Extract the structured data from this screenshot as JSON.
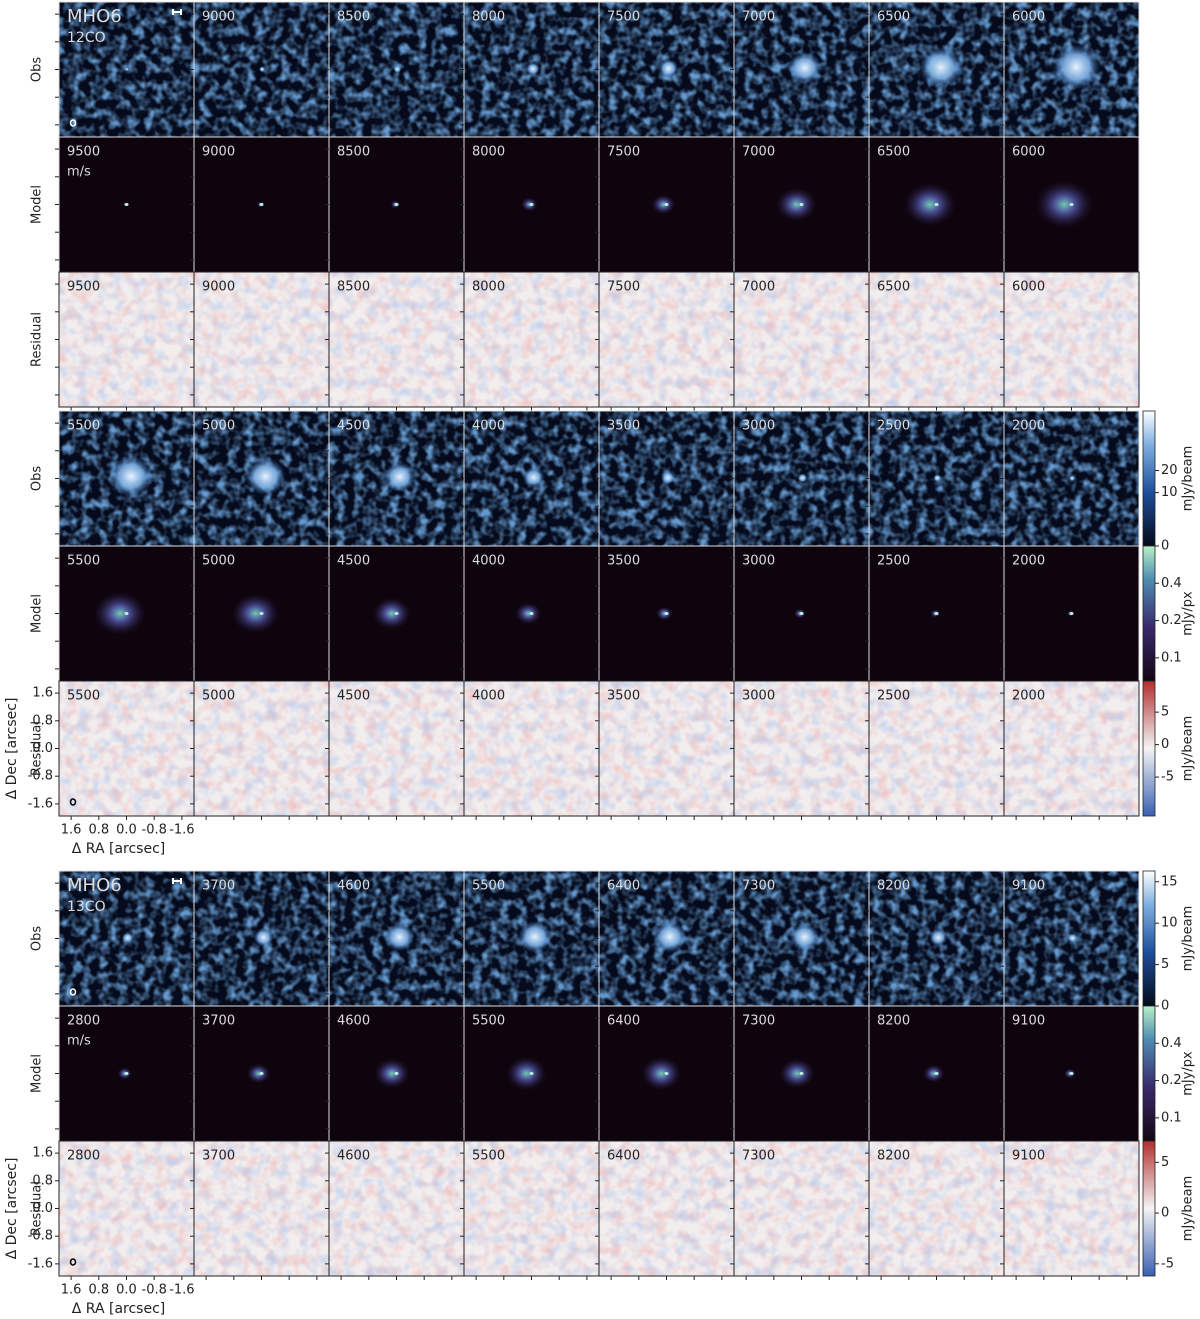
{
  "figures": [
    {
      "title": "MHO6",
      "line": "12CO",
      "unit": "m/s",
      "row_labels": [
        "Obs",
        "Model",
        "Residual"
      ],
      "groups": [
        {
          "velocities": [
            9500,
            9000,
            8500,
            8000,
            7500,
            7000,
            6500,
            6000
          ]
        },
        {
          "velocities": [
            5500,
            5000,
            4500,
            4000,
            3500,
            3000,
            2500,
            2000
          ]
        }
      ],
      "colorbars": [
        {
          "label": "mJy/beam",
          "scale": "sqrt",
          "lim": [
            0,
            64
          ],
          "ticks": [
            0,
            10,
            20
          ]
        },
        {
          "label": "mJy/px",
          "scale": "log",
          "lim": [
            0.065,
            0.8
          ],
          "ticks": [
            0.1,
            0.2,
            0.4
          ]
        },
        {
          "label": "mJy/beam",
          "scale": "linear",
          "lim": [
            -11,
            9.8
          ],
          "ticks": [
            -5,
            0,
            5
          ]
        }
      ],
      "xlabel": "Δ RA [arcsec]",
      "ylabel": "Δ Dec [arcsec]",
      "xlim": [
        1.95,
        -1.95
      ],
      "ylim": [
        -1.95,
        1.95
      ],
      "xticks": [
        1.6,
        0.8,
        {
          "value": 0,
          "label": "0.0"
        },
        -0.8,
        -1.6
      ],
      "yticks": [
        1.6,
        0.8,
        {
          "value": 0,
          "label": "0.0"
        },
        -0.8,
        -1.6
      ]
    },
    {
      "title": "MHO6",
      "line": "13CO",
      "unit": "m/s",
      "row_labels": [
        "Obs",
        "Model",
        "Residual"
      ],
      "groups": [
        {
          "velocities": [
            2800,
            3700,
            4600,
            5500,
            6400,
            7300,
            8200,
            9100
          ]
        }
      ],
      "colorbars": [
        {
          "label": "mJy/beam",
          "scale": "linear",
          "lim": [
            0,
            16.3
          ],
          "ticks": [
            0,
            5,
            10,
            15
          ]
        },
        {
          "label": "mJy/px",
          "scale": "log",
          "lim": [
            0.065,
            0.8
          ],
          "ticks": [
            0.1,
            0.2,
            0.4
          ]
        },
        {
          "label": "mJy/beam",
          "scale": "linear",
          "lim": [
            -6.2,
            7.1
          ],
          "ticks": [
            -5,
            0,
            5
          ]
        }
      ],
      "xlabel": "Δ RA [arcsec]",
      "ylabel": "Δ Dec [arcsec]",
      "xlim": [
        1.95,
        -1.95
      ],
      "ylim": [
        -1.95,
        1.95
      ],
      "xticks": [
        1.6,
        0.8,
        {
          "value": 0,
          "label": "0.0"
        },
        -0.8,
        -1.6
      ],
      "yticks": [
        1.6,
        0.8,
        {
          "value": 0,
          "label": "0.0"
        },
        -0.8,
        -1.6
      ]
    }
  ]
}
